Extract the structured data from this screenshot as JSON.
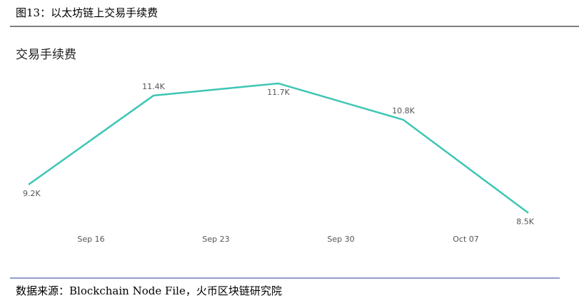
{
  "header": {
    "title": "图13：以太坊链上交易手续费"
  },
  "chart_data": {
    "type": "line",
    "title": "交易手续费",
    "x": [
      0,
      1,
      2,
      3,
      4
    ],
    "xlim": [
      0,
      4
    ],
    "xticks": [
      {
        "value": 0.5,
        "label": "Sep 16"
      },
      {
        "value": 1.5,
        "label": "Sep 23"
      },
      {
        "value": 2.5,
        "label": "Sep 30"
      },
      {
        "value": 3.5,
        "label": "Oct 07"
      }
    ],
    "series": [
      {
        "color": "#3ec6b5",
        "values": [
          9200,
          11400,
          11700,
          10800,
          8500
        ],
        "value_labels": [
          "9.2K",
          "11.4K",
          "11.7K",
          "10.8K",
          "8.5K"
        ]
      }
    ],
    "ylim": [
      8000,
      12000
    ]
  },
  "footer": {
    "source": "数据来源：Blockchain Node File，火币区块链研究院"
  }
}
